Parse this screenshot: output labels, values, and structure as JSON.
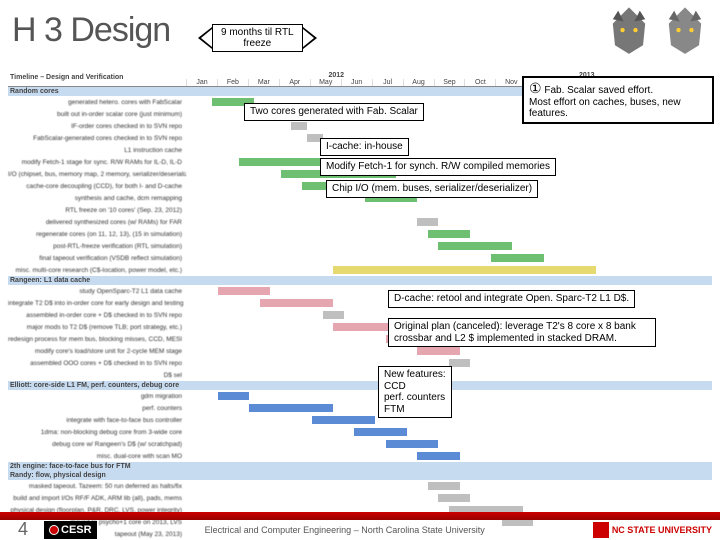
{
  "title": "H 3 Design",
  "rtl_arrow_label": "9 months til RTL\nfreeze",
  "callouts": {
    "saved_effort_icon": "①",
    "saved_effort_heading": "Fab. Scalar saved effort.",
    "saved_effort_body": "Most effort on caches, buses, new features.",
    "two_cores": "Two cores generated with Fab. Scalar",
    "icache": "I-cache: in-house",
    "fetch1": "Modify Fetch-1 for synch. R/W compiled memories",
    "chipio": "Chip I/O (mem. buses, serializer/deserializer)",
    "dcache": "D-cache: retool and integrate Open. Sparc-T2 L1 D$.",
    "origplan": "Original plan (canceled): leverage T2's 8 core x 8 bank crossbar and L2 $ implemented in stacked DRAM.",
    "newfeat": "New features:\nCCD\nperf. counters\nFTM"
  },
  "gantt": {
    "header_label": "Timeline – Design and Verification",
    "years": [
      "",
      "2012",
      "2013"
    ],
    "months": [
      "Jan",
      "Feb",
      "Mar",
      "Apr",
      "May",
      "Jun",
      "Jul",
      "Aug",
      "Sep",
      "Oct",
      "Nov",
      "Dec",
      "Jan",
      "Feb",
      "Mar",
      "Apr",
      "May"
    ],
    "section_colors": {
      "section_bg": "#c6daf0",
      "bar_green": "#6fbf73",
      "bar_pink": "#e6a6b0",
      "bar_blue": "#5b8bd4",
      "bar_gray": "#bfbfbf",
      "bar_yellow": "#e6d96f"
    },
    "sections": [
      {
        "name": "Random cores",
        "rows": [
          {
            "task": "generated hetero. cores with FabScalar",
            "bars": [
              {
                "c": "bar_green",
                "l": 5,
                "w": 8
              }
            ]
          },
          {
            "task": "built out in-order scalar core (just minimum)",
            "bars": [
              {
                "c": "bar_green",
                "l": 12,
                "w": 10
              }
            ]
          },
          {
            "task": "IF-order cores checked in to SVN repo",
            "bars": [
              {
                "c": "bar_gray",
                "l": 20,
                "w": 3
              }
            ]
          },
          {
            "task": "FabScalar-generated cores checked in to SVN repo",
            "bars": [
              {
                "c": "bar_gray",
                "l": 23,
                "w": 3
              }
            ]
          },
          {
            "task": "L1 instruction cache",
            "bars": []
          },
          {
            "task": "modify Fetch-1 stage for sync. R/W RAMs for IL-D, IL-D",
            "bars": [
              {
                "c": "bar_green",
                "l": 10,
                "w": 18
              }
            ]
          },
          {
            "task": "I/O (chipset, bus, memory map, 2 memory, serializer/deserializer)",
            "bars": [
              {
                "c": "bar_green",
                "l": 18,
                "w": 22
              }
            ]
          },
          {
            "task": "cache-core decoupling (CCD), for both I- and D-cache",
            "bars": [
              {
                "c": "bar_green",
                "l": 22,
                "w": 18
              }
            ]
          },
          {
            "task": "synthesis and cache, dcm remapping",
            "bars": [
              {
                "c": "bar_green",
                "l": 34,
                "w": 10
              }
            ]
          },
          {
            "task": "RTL freeze on '10 cores' (Sep. 23, 2012)",
            "bars": []
          },
          {
            "task": "delivered synthesized cores (w/ RAMs) for FAR",
            "bars": [
              {
                "c": "bar_gray",
                "l": 44,
                "w": 4
              }
            ]
          },
          {
            "task": "regenerate cores (on 11, 12, 13), (15 in simulation)",
            "bars": [
              {
                "c": "bar_green",
                "l": 46,
                "w": 8
              }
            ]
          },
          {
            "task": "post-RTL-freeze verification (RTL simulation)",
            "bars": [
              {
                "c": "bar_green",
                "l": 48,
                "w": 14
              }
            ]
          },
          {
            "task": "final tapeout verification (VSDB reflect simulation)",
            "bars": [
              {
                "c": "bar_green",
                "l": 58,
                "w": 10
              }
            ]
          },
          {
            "task": "misc. multi-core research (C$-location, power model, etc.)",
            "bars": [
              {
                "c": "bar_yellow",
                "l": 28,
                "w": 50
              }
            ]
          }
        ]
      },
      {
        "name": "Rangeen: L1 data cache",
        "rows": [
          {
            "task": "study OpenSparc-T2 L1 data cache",
            "bars": [
              {
                "c": "bar_pink",
                "l": 6,
                "w": 10
              }
            ]
          },
          {
            "task": "integrate T2 D$ into in-order core for early design and testing",
            "bars": [
              {
                "c": "bar_pink",
                "l": 14,
                "w": 14
              }
            ]
          },
          {
            "task": "assembled in-order core + D$ checked in to SVN repo",
            "bars": [
              {
                "c": "bar_gray",
                "l": 26,
                "w": 4
              }
            ]
          },
          {
            "task": "major mods to T2 D$ (remove TLB; port strategy, etc.)",
            "bars": [
              {
                "c": "bar_pink",
                "l": 28,
                "w": 14
              }
            ]
          },
          {
            "task": "redesign process for mem bus, blocking misses, CCD, MESI",
            "bars": [
              {
                "c": "bar_pink",
                "l": 38,
                "w": 12
              }
            ]
          },
          {
            "task": "modify core's load/store unit for 2-cycle MEM stage",
            "bars": [
              {
                "c": "bar_pink",
                "l": 44,
                "w": 8
              }
            ]
          },
          {
            "task": "assembled OOO cores + D$ checked in to SVN repo",
            "bars": [
              {
                "c": "bar_gray",
                "l": 50,
                "w": 4
              }
            ]
          },
          {
            "task": "D$ sel",
            "bars": []
          }
        ]
      },
      {
        "name": "Elliott: core-side L1 FM, perf. counters, debug core",
        "rows": [
          {
            "task": "gdm migration",
            "bars": [
              {
                "c": "bar_blue",
                "l": 6,
                "w": 6
              }
            ]
          },
          {
            "task": "perf. counters",
            "bars": [
              {
                "c": "bar_blue",
                "l": 12,
                "w": 16
              }
            ]
          },
          {
            "task": "integrate with face-to-face bus controller",
            "bars": [
              {
                "c": "bar_blue",
                "l": 24,
                "w": 12
              }
            ]
          },
          {
            "task": "1dma: non-blocking debug core from 3-wide core",
            "bars": [
              {
                "c": "bar_blue",
                "l": 32,
                "w": 10
              }
            ]
          },
          {
            "task": "debug core w/ Rangeen's D$ (w/ scratchpad)",
            "bars": [
              {
                "c": "bar_blue",
                "l": 38,
                "w": 10
              }
            ]
          },
          {
            "task": "misc. dual-core with scan MO",
            "bars": [
              {
                "c": "bar_blue",
                "l": 44,
                "w": 8
              }
            ]
          }
        ]
      },
      {
        "name": "2th engine: face-to-face bus for FTM",
        "rows": []
      },
      {
        "name": "Randy: flow, physical design",
        "rows": [
          {
            "task": "masked tapeout. Tazeem: 50 run deferred as halts/fix",
            "bars": [
              {
                "c": "bar_gray",
                "l": 46,
                "w": 6
              }
            ]
          },
          {
            "task": "build and import I/Os RF/F ADK, ARM lib (all), pads, mems",
            "bars": [
              {
                "c": "bar_gray",
                "l": 48,
                "w": 6
              }
            ]
          },
          {
            "task": "physical design (floorplan, P&R, DRC, LVS, power integrity)",
            "bars": [
              {
                "c": "bar_gray",
                "l": 50,
                "w": 14
              }
            ]
          },
          {
            "task": "moved to psycho+1 core on 2013, LVS",
            "bars": [
              {
                "c": "bar_gray",
                "l": 60,
                "w": 6
              }
            ]
          },
          {
            "task": "tapeout (May 23, 2013)",
            "bars": []
          }
        ]
      }
    ]
  },
  "footer": {
    "slide_num": "4",
    "cesr": "CESR",
    "text": "Electrical and Computer Engineering – North Carolina State University",
    "ncsu": "NC STATE UNIVERSITY"
  }
}
